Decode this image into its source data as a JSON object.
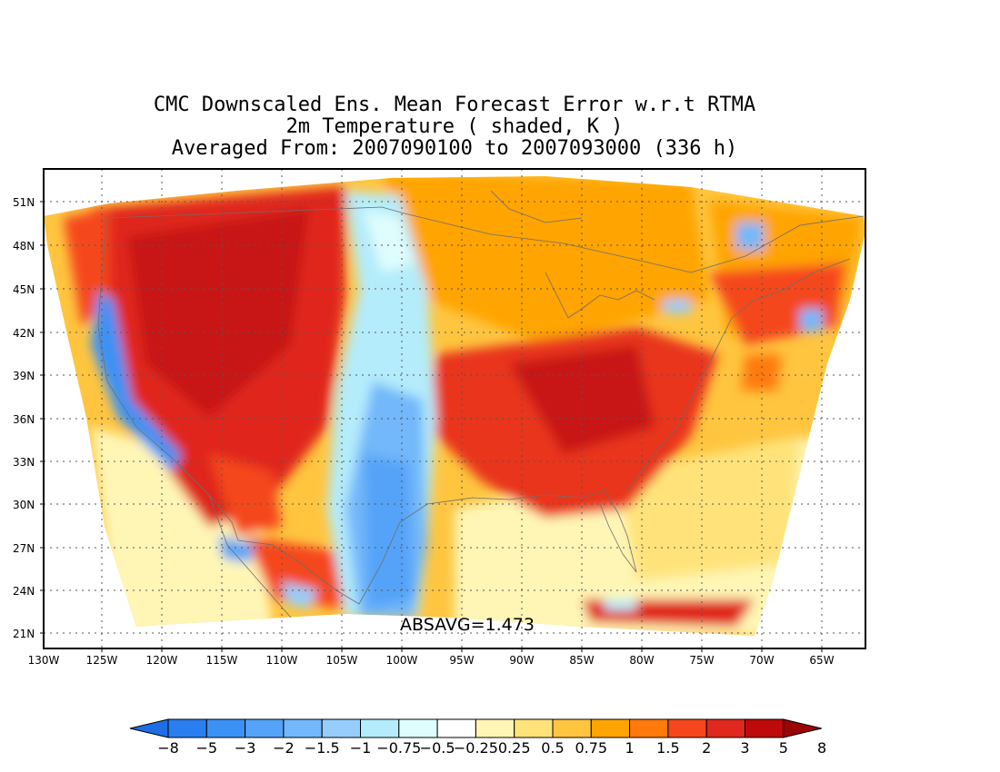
{
  "title": {
    "line1": "CMC Downscaled Ens. Mean Forecast Error w.r.t RTMA",
    "line2": "2m Temperature ( shaded, K )",
    "line3": "Averaged From: 2007090100 to 2007093000 (336 h)"
  },
  "annotation": "ABSAVG=1.473",
  "axes": {
    "lon_labels": [
      "130W",
      "125W",
      "120W",
      "115W",
      "110W",
      "105W",
      "100W",
      "95W",
      "90W",
      "85W",
      "80W",
      "75W",
      "70W",
      "65W"
    ],
    "lat_labels": [
      "51N",
      "48N",
      "45N",
      "42N",
      "39N",
      "36N",
      "33N",
      "30N",
      "27N",
      "24N",
      "21N"
    ]
  },
  "colorbar": {
    "labels": [
      "−8",
      "−5",
      "−3",
      "−2",
      "−1.5",
      "−1",
      "−0.75",
      "−0.5",
      "−0.25",
      "0.25",
      "0.5",
      "0.75",
      "1",
      "1.5",
      "2",
      "3",
      "5",
      "8"
    ],
    "colors": [
      "#1e6ee6",
      "#2a7ff0",
      "#3c91f5",
      "#55a3f8",
      "#72b8fa",
      "#96cdfc",
      "#b4ecfb",
      "#e0fdfd",
      "#ffffff",
      "#fff6b5",
      "#ffe37a",
      "#ffc53f",
      "#ffa400",
      "#ff7a0a",
      "#f5461e",
      "#e0281e",
      "#be0a0a",
      "#9b0505"
    ]
  },
  "regions": [
    {
      "name": "west-warm-bias",
      "color": "#e0281e"
    },
    {
      "name": "east-warm-bias",
      "color": "#e8341a"
    },
    {
      "name": "plains-cool-bias",
      "color": "#72b8fa"
    },
    {
      "name": "pacific-coast-cool-bias",
      "color": "#3c91f5"
    }
  ]
}
